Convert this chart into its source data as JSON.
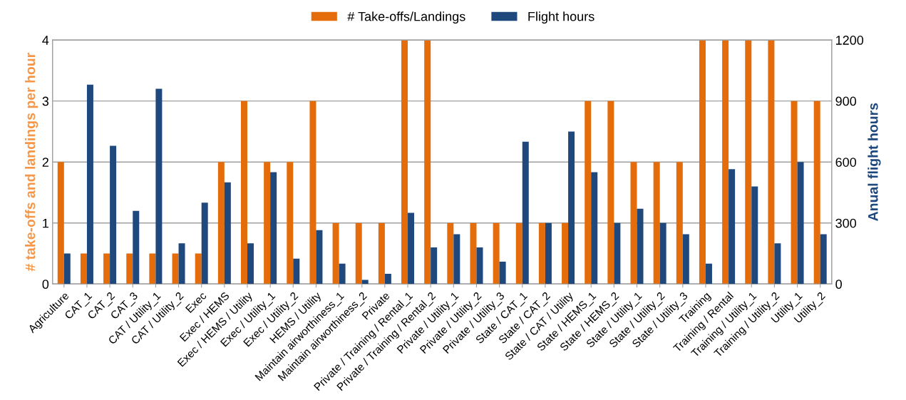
{
  "chart_data": {
    "type": "bar",
    "ylabel": "# take-offs and landings per hour",
    "y2label": "Anual flight hours",
    "categories": [
      "Agriculture",
      "CAT_1",
      "CAT_2",
      "CAT_3",
      "CAT / Utility_1",
      "CAT / Utility_2",
      "Exec",
      "Exec / HEMS",
      "Exec / HEMS / Utility",
      "Exec / Utility_1",
      "Exec / Utility_2",
      "HEMS / Utility",
      "Maintain airworthiness_1",
      "Maintain airworthiness_2",
      "Private",
      "Private / Training / Rental_1",
      "Private / Training / Rental_2",
      "Private / Utility_1",
      "Private / Utility_2",
      "Private / Utility_3",
      "State / CAT_1",
      "State / CAT_2",
      "State / CAT / Utility",
      "State / HEMS_1",
      "State / HEMS_2",
      "State / Utility_1",
      "State / Utility_2",
      "State / Utility_3",
      "Training",
      "Training / Rental",
      "Training / Utility_1",
      "Training / Utility_2",
      "Utility_1",
      "Utility_2"
    ],
    "series": [
      {
        "name": "# Take-offs/Landings",
        "color": "#e46c0a",
        "values": [
          2,
          0.5,
          0.5,
          0.5,
          0.5,
          0.5,
          0.5,
          2,
          3,
          2,
          2,
          3,
          1,
          1,
          1,
          4,
          4,
          1,
          1,
          1,
          1,
          1,
          1,
          3,
          3,
          2,
          2,
          2,
          4,
          4,
          4,
          4,
          3,
          3
        ]
      },
      {
        "name": "Flight hours",
        "color": "#1f497d",
        "axis": "y2",
        "values": [
          150,
          980,
          680,
          360,
          960,
          200,
          400,
          500,
          200,
          550,
          125,
          265,
          100,
          20,
          50,
          350,
          180,
          245,
          180,
          110,
          700,
          300,
          750,
          550,
          300,
          370,
          300,
          245,
          100,
          565,
          480,
          200,
          600,
          245
        ]
      }
    ],
    "ylim": [
      0,
      4
    ],
    "yticks": [
      0,
      1,
      2,
      3,
      4
    ],
    "y2lim": [
      0,
      1200
    ],
    "y2ticks": [
      0,
      300,
      600,
      900,
      1200
    ],
    "grid": "y",
    "legend": "top"
  }
}
